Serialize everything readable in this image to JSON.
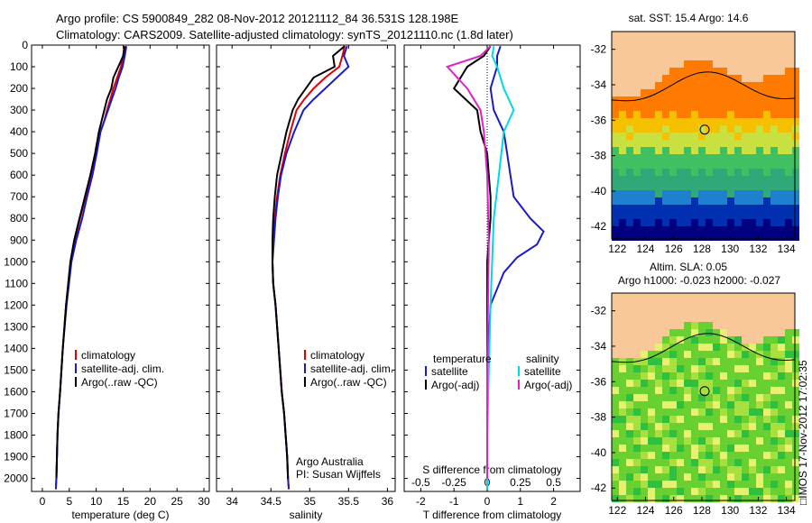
{
  "header": {
    "line1": "Argo profile: CS 5900849_282 08-Nov-2012 20121112_84 36.531S 128.198E",
    "line2": "Climatology: CARS2009. Satellite-adjusted climatology: synTS_20121110.nc (1.8d later)"
  },
  "colors": {
    "climatology": "#e00000",
    "satellite": "#1a1acc",
    "argo": "#000000",
    "satellite_salinity": "#00d8e8",
    "argo_salinity": "#e020c8"
  },
  "chart_data": [
    {
      "type": "line",
      "id": "temperature",
      "xlabel": "temperature (deg C)",
      "ylabel": "",
      "xlim": [
        -2,
        31
      ],
      "ylim": [
        2060,
        0
      ],
      "xticks": [
        0,
        5,
        10,
        15,
        20,
        25,
        30
      ],
      "yticks": [
        0,
        100,
        200,
        300,
        400,
        500,
        600,
        700,
        800,
        900,
        1000,
        1100,
        1200,
        1300,
        1400,
        1500,
        1600,
        1700,
        1800,
        1900,
        2000
      ],
      "legend": [
        "climatology",
        "satellite-adj. clim.",
        "Argo(..raw -QC)"
      ],
      "series": [
        {
          "name": "climatology",
          "x": [
            15.2,
            15.0,
            14.6,
            13.9,
            13.2,
            12.6,
            12.0,
            11.5,
            10.8,
            10.0,
            9.0,
            8.0,
            7.0,
            6.0,
            5.3,
            4.4,
            3.8,
            3.3,
            3.0,
            2.8,
            2.7,
            2.6,
            2.5
          ],
          "y": [
            5,
            50,
            100,
            150,
            200,
            250,
            300,
            350,
            400,
            500,
            600,
            700,
            800,
            900,
            1000,
            1200,
            1400,
            1600,
            1700,
            1800,
            1900,
            2000,
            2050
          ]
        },
        {
          "name": "satellite-adj. clim.",
          "x": [
            15.6,
            15.3,
            14.9,
            14.2,
            13.6,
            12.9,
            12.2,
            11.5,
            10.8,
            10.1,
            9.3,
            8.3,
            7.4,
            6.3,
            5.4,
            4.5,
            3.8,
            3.3,
            3.0,
            2.8,
            2.7,
            2.6,
            2.5
          ],
          "y": [
            5,
            50,
            100,
            150,
            200,
            250,
            300,
            350,
            400,
            500,
            600,
            700,
            800,
            900,
            1000,
            1200,
            1400,
            1600,
            1700,
            1800,
            1900,
            2000,
            2050
          ]
        },
        {
          "name": "Argo(..raw -QC)",
          "x": [
            15.3,
            15.0,
            14.1,
            13.2,
            12.8,
            12.0,
            11.5,
            11.0,
            10.5,
            9.8,
            8.9,
            7.9,
            6.9,
            5.9,
            5.2,
            4.4,
            3.8,
            3.3,
            3.0,
            2.8,
            2.7,
            2.6
          ],
          "y": [
            5,
            50,
            100,
            150,
            200,
            250,
            300,
            350,
            400,
            500,
            600,
            700,
            800,
            900,
            1000,
            1200,
            1400,
            1600,
            1700,
            1800,
            1900,
            2000
          ]
        }
      ]
    },
    {
      "type": "line",
      "id": "salinity",
      "xlabel": "salinity",
      "ylabel": "",
      "xlim": [
        33.8,
        36.1
      ],
      "ylim": [
        2060,
        0
      ],
      "xticks": [
        34,
        34.5,
        35,
        35.5,
        36
      ],
      "legend": [
        "climatology",
        "satellite-adj. clim.",
        "Argo(..raw -QC)"
      ],
      "annotation": [
        "Argo Australia",
        "PI: Susan Wijffels"
      ],
      "series": [
        {
          "name": "climatology",
          "x": [
            35.45,
            35.42,
            35.38,
            35.2,
            35.05,
            34.93,
            34.83,
            34.75,
            34.68,
            34.62,
            34.58,
            34.55,
            34.53,
            34.52,
            34.53,
            34.56,
            34.6,
            34.64,
            34.67,
            34.69,
            34.71,
            34.72,
            34.73
          ],
          "y": [
            5,
            50,
            100,
            150,
            200,
            250,
            300,
            400,
            500,
            600,
            700,
            800,
            900,
            1000,
            1100,
            1200,
            1400,
            1600,
            1700,
            1800,
            1900,
            2000,
            2050
          ]
        },
        {
          "name": "satellite-adj. clim.",
          "x": [
            35.48,
            35.44,
            35.5,
            35.35,
            35.2,
            35.05,
            34.92,
            34.8,
            34.7,
            34.63,
            34.59,
            34.56,
            34.54,
            34.52,
            34.53,
            34.56,
            34.6,
            34.64,
            34.67,
            34.69,
            34.71,
            34.72,
            34.73
          ],
          "y": [
            5,
            50,
            100,
            150,
            200,
            250,
            300,
            400,
            500,
            600,
            700,
            800,
            900,
            1000,
            1100,
            1200,
            1400,
            1600,
            1700,
            1800,
            1900,
            2000,
            2050
          ]
        },
        {
          "name": "Argo(..raw -QC)",
          "x": [
            35.45,
            35.3,
            35.32,
            35.05,
            34.95,
            34.85,
            34.78,
            34.7,
            34.64,
            34.58,
            34.55,
            34.53,
            34.52,
            34.52,
            34.53,
            34.56,
            34.6,
            34.64,
            34.67,
            34.69,
            34.71,
            34.72
          ],
          "y": [
            5,
            50,
            100,
            150,
            200,
            250,
            300,
            400,
            500,
            600,
            700,
            800,
            900,
            1000,
            1100,
            1200,
            1400,
            1600,
            1700,
            1800,
            1900,
            2000
          ]
        }
      ]
    },
    {
      "type": "line",
      "id": "difference",
      "xlabel": "T difference from climatology",
      "xlabel_top": "S difference from climatology",
      "xlim": [
        -2.5,
        2.8
      ],
      "ylim": [
        2060,
        0
      ],
      "xticks": [
        -2,
        -1,
        0,
        1,
        2
      ],
      "xticks_s": [
        -0.5,
        -0.25,
        0,
        0.25,
        0.5
      ],
      "legend": {
        "temperature": [
          "satellite",
          "Argo(-adj)"
        ],
        "salinity": [
          "satellite",
          "Argo(-adj)"
        ]
      },
      "series": [
        {
          "name": "temperature satellite",
          "x": [
            0.4,
            0.3,
            0.3,
            0.2,
            0.1,
            0.2,
            0.5,
            0.6,
            0.7,
            0.8,
            1.3,
            1.7,
            1.5,
            0.9,
            0.5,
            0.1,
            0.0,
            0.0,
            0.0
          ],
          "y": [
            5,
            50,
            100,
            150,
            200,
            300,
            400,
            500,
            600,
            700,
            800,
            860,
            920,
            980,
            1050,
            1200,
            1500,
            1800,
            2050
          ]
        },
        {
          "name": "temperature Argo(-adj)",
          "x": [
            0.1,
            -0.1,
            -0.6,
            -1.0,
            -0.3,
            -0.2,
            0.0,
            0.05,
            0.1,
            0.1,
            0.05,
            0.0,
            0.0,
            0.0
          ],
          "y": [
            5,
            50,
            100,
            200,
            300,
            400,
            500,
            600,
            700,
            800,
            900,
            1000,
            1500,
            2000
          ]
        },
        {
          "name": "salinity satellite",
          "x": [
            0.2,
            0.15,
            0.3,
            0.5,
            0.8,
            0.5,
            0.35,
            0.2,
            0.15,
            0.1,
            0.05,
            0.0,
            0.0
          ],
          "y": [
            5,
            50,
            100,
            200,
            300,
            400,
            600,
            800,
            1000,
            1200,
            1500,
            1800,
            2050
          ]
        },
        {
          "name": "salinity Argo(-adj)",
          "x": [
            0.1,
            -0.2,
            -1.2,
            -0.6,
            -0.2,
            -0.1,
            0.0,
            0.05,
            0.0,
            0.0
          ],
          "y": [
            5,
            50,
            100,
            200,
            300,
            400,
            600,
            900,
            1500,
            2000
          ]
        }
      ]
    }
  ],
  "maps": {
    "map1": {
      "title": "sat. SST: 15.4  Argo: 14.6",
      "xticks": [
        122,
        124,
        126,
        128,
        130,
        132,
        134
      ],
      "yticks": [
        -32,
        -34,
        -36,
        -38,
        -40,
        -42
      ]
    },
    "map2": {
      "title1": "Altim. SLA: 0.05",
      "title2": "Argo h1000: -0.023  h2000: -0.027",
      "xticks": [
        122,
        124,
        126,
        128,
        130,
        132,
        134
      ],
      "yticks": [
        -32,
        -34,
        -36,
        -38,
        -40,
        -42
      ]
    },
    "profile_location": {
      "lon": 128.198,
      "lat": -36.531
    }
  },
  "stamp": "□IMOS 17-Nov-2012 17:02:35"
}
